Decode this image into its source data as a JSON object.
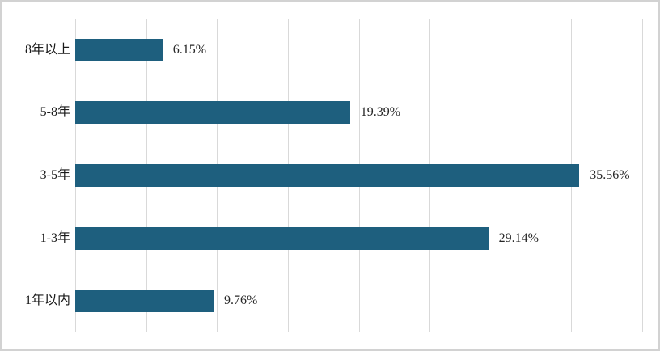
{
  "chart_data": {
    "type": "bar",
    "orientation": "horizontal",
    "title": "",
    "xlabel": "",
    "ylabel": "",
    "categories": [
      "8年以上",
      "5-8年",
      "3-5年",
      "1-3年",
      "1年以内"
    ],
    "values": [
      6.15,
      19.39,
      35.56,
      29.14,
      9.76
    ],
    "value_labels": [
      "6.15%",
      "19.39%",
      "35.56%",
      "29.14%",
      "9.76%"
    ],
    "xlim": [
      0,
      40
    ],
    "grid_interval": 5,
    "grid": true,
    "legend": false,
    "bar_color": "#1e5f7e",
    "gridline_color": "#d9d9d9",
    "frame_border_color": "#d2d2d2",
    "text_color": "#262626"
  }
}
